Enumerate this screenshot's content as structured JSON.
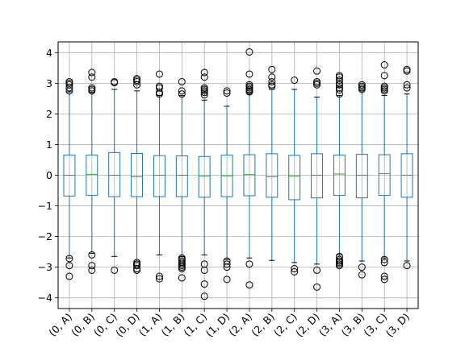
{
  "chart_data": {
    "type": "box",
    "title": "",
    "xlabel": "",
    "ylabel": "",
    "ylim": [
      -4.35,
      4.35
    ],
    "yticks": [
      -4,
      -3,
      -2,
      -1,
      0,
      1,
      2,
      3,
      4
    ],
    "ytick_labels": [
      "−4",
      "−3",
      "−2",
      "−1",
      "0",
      "1",
      "2",
      "3",
      "4"
    ],
    "grid": true,
    "colors": {
      "box": "#1f77b4",
      "median": "#2ca02c",
      "cap": "#000000",
      "flier": "#000000",
      "grid": "#b0b0b0"
    },
    "categories": [
      "(0, A)",
      "(0, B)",
      "(0, C)",
      "(0, D)",
      "(1, A)",
      "(1, B)",
      "(1, C)",
      "(1, D)",
      "(2, A)",
      "(2, B)",
      "(2, C)",
      "(2, D)",
      "(3, A)",
      "(3, B)",
      "(3, C)",
      "(3, D)"
    ],
    "boxes": [
      {
        "whislo": -2.7,
        "q1": -0.68,
        "med": 0.0,
        "q3": 0.66,
        "whishi": 2.72,
        "fliers": [
          3.05,
          3.0,
          2.95,
          2.85,
          2.75,
          -2.72,
          -2.95,
          -3.3
        ]
      },
      {
        "whislo": -2.55,
        "q1": -0.66,
        "med": 0.03,
        "q3": 0.66,
        "whishi": 2.7,
        "fliers": [
          3.35,
          3.2,
          2.85,
          2.8,
          2.75,
          -2.6,
          -2.95,
          -3.1
        ]
      },
      {
        "whislo": -2.65,
        "q1": -0.7,
        "med": 0.0,
        "q3": 0.74,
        "whishi": 2.8,
        "fliers": [
          3.05,
          3.02,
          -3.1
        ]
      },
      {
        "whislo": -2.8,
        "q1": -0.7,
        "med": -0.05,
        "q3": 0.71,
        "whishi": 2.75,
        "fliers": [
          3.15,
          3.1,
          3.05,
          2.95,
          -2.85,
          -2.9,
          -2.95,
          -3.05,
          -3.1
        ]
      },
      {
        "whislo": -2.6,
        "q1": -0.7,
        "med": 0.0,
        "q3": 0.64,
        "whishi": 2.6,
        "fliers": [
          3.3,
          2.9,
          2.85,
          2.7,
          2.65,
          -3.3,
          -3.38
        ]
      },
      {
        "whislo": -2.65,
        "q1": -0.7,
        "med": 0.0,
        "q3": 0.63,
        "whishi": 2.6,
        "fliers": [
          3.05,
          2.75,
          2.65,
          -2.7,
          -2.75,
          -2.8,
          -2.85,
          -2.9,
          -2.95,
          -3.0,
          -3.05,
          -3.35
        ]
      },
      {
        "whislo": -2.6,
        "q1": -0.72,
        "med": -0.03,
        "q3": 0.61,
        "whishi": 2.45,
        "fliers": [
          3.35,
          3.2,
          2.85,
          2.8,
          2.75,
          2.7,
          2.62,
          -2.9,
          -3.1,
          -3.55,
          -3.95
        ]
      },
      {
        "whislo": -2.75,
        "q1": -0.7,
        "med": -0.02,
        "q3": 0.66,
        "whishi": 2.25,
        "fliers": [
          2.75,
          2.68,
          -2.8,
          -2.9,
          -3.0,
          -3.4
        ]
      },
      {
        "whislo": -2.7,
        "q1": -0.67,
        "med": 0.02,
        "q3": 0.67,
        "whishi": 2.7,
        "fliers": [
          4.02,
          3.3,
          2.95,
          2.9,
          2.85,
          2.8,
          2.75,
          2.72,
          -2.9,
          -3.58
        ]
      },
      {
        "whislo": -2.78,
        "q1": -0.72,
        "med": -0.05,
        "q3": 0.7,
        "whishi": 2.8,
        "fliers": [
          3.45,
          3.2,
          3.05,
          2.95,
          2.9
        ]
      },
      {
        "whislo": -2.85,
        "q1": -0.8,
        "med": -0.03,
        "q3": 0.65,
        "whishi": 2.8,
        "fliers": [
          3.1,
          -3.05,
          -3.15
        ]
      },
      {
        "whislo": -2.9,
        "q1": -0.74,
        "med": 0.0,
        "q3": 0.7,
        "whishi": 2.55,
        "fliers": [
          3.4,
          3.05,
          3.0,
          2.95,
          -3.1,
          -3.65
        ]
      },
      {
        "whislo": -2.6,
        "q1": -0.66,
        "med": 0.04,
        "q3": 0.66,
        "whishi": 2.6,
        "fliers": [
          3.25,
          3.2,
          3.1,
          3.0,
          2.95,
          2.85,
          2.78,
          2.65,
          -2.65,
          -2.75,
          -2.8,
          -2.85,
          -2.9,
          -2.95
        ]
      },
      {
        "whislo": -2.8,
        "q1": -0.74,
        "med": 0.0,
        "q3": 0.68,
        "whishi": 2.75,
        "fliers": [
          2.95,
          2.9,
          2.85,
          2.8,
          -3.0,
          -3.25
        ]
      },
      {
        "whislo": -2.7,
        "q1": -0.66,
        "med": 0.05,
        "q3": 0.67,
        "whishi": 2.6,
        "fliers": [
          3.6,
          3.25,
          2.9,
          2.85,
          2.8,
          2.75,
          -2.75,
          -2.85,
          -3.3,
          -3.4
        ]
      },
      {
        "whislo": -2.8,
        "q1": -0.72,
        "med": 0.0,
        "q3": 0.7,
        "whishi": 2.65,
        "fliers": [
          3.45,
          3.4,
          2.95,
          2.85,
          -2.95
        ]
      }
    ]
  }
}
